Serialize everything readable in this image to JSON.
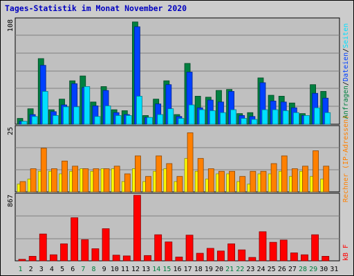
{
  "title": "Tages-Statistik im Monat November 2020",
  "colors": {
    "hits": "#008040",
    "files": "#0040ff",
    "pages": "#00e0ff",
    "visits": "#ffff00",
    "sites": "#ff8000",
    "kbytes": "#ff0000",
    "weekend": "#008040",
    "weekday": "#000000",
    "title": "#0000c0",
    "panel": "#c0c0c0"
  },
  "chart_data": [
    {
      "type": "bar",
      "panel": "top",
      "ymax_label": "108",
      "ylim": [
        0,
        108
      ],
      "categories": [
        "1",
        "2",
        "3",
        "4",
        "5",
        "6",
        "7",
        "8",
        "9",
        "10",
        "11",
        "12",
        "13",
        "14",
        "15",
        "16",
        "17",
        "18",
        "19",
        "20",
        "21",
        "22",
        "23",
        "24",
        "25",
        "26",
        "27",
        "28",
        "29",
        "30",
        "31"
      ],
      "weekend_days": [
        "1",
        "7",
        "8",
        "14",
        "15",
        "21",
        "22",
        "28",
        "29"
      ],
      "legend": {
        "placement": "right",
        "parts": [
          "Anfragen",
          "/",
          "Dateien",
          "/",
          "Seiten"
        ]
      },
      "series": [
        {
          "name": "Anfragen",
          "values": [
            6,
            16,
            68,
            15,
            26,
            45,
            50,
            23,
            39,
            15,
            14,
            106,
            9,
            26,
            45,
            10,
            63,
            29,
            28,
            35,
            36,
            11,
            12,
            48,
            30,
            29,
            22,
            11,
            41,
            34,
            0
          ]
        },
        {
          "name": "Dateien",
          "values": [
            3,
            10,
            61,
            13,
            20,
            42,
            38,
            19,
            35,
            12,
            10,
            101,
            7,
            21,
            41,
            8,
            54,
            17,
            25,
            23,
            34,
            9,
            8,
            43,
            24,
            23,
            17,
            9,
            32,
            27,
            0
          ]
        },
        {
          "name": "Seiten",
          "values": [
            3,
            8,
            34,
            9,
            18,
            18,
            39,
            8,
            19,
            9,
            9,
            29,
            7,
            10,
            16,
            6,
            20,
            15,
            14,
            12,
            15,
            6,
            5,
            15,
            15,
            14,
            12,
            9,
            17,
            12,
            0
          ]
        }
      ]
    },
    {
      "type": "bar",
      "panel": "middle",
      "ymax_label": "25",
      "ylim": [
        0,
        25
      ],
      "categories": [
        "1",
        "2",
        "3",
        "4",
        "5",
        "6",
        "7",
        "8",
        "9",
        "10",
        "11",
        "12",
        "13",
        "14",
        "15",
        "16",
        "17",
        "18",
        "19",
        "20",
        "21",
        "22",
        "23",
        "24",
        "25",
        "26",
        "27",
        "28",
        "29",
        "30",
        "31"
      ],
      "legend": {
        "placement": "right",
        "parts": [
          "Rechner (IP-Adressen)"
        ]
      },
      "series": [
        {
          "name": "Rechner (IP-Adressen)",
          "values": [
            3,
            5,
            8,
            8,
            7,
            8,
            9,
            8,
            9,
            9,
            4,
            9,
            4,
            8,
            9,
            4,
            13,
            8,
            5,
            7,
            7,
            4,
            3,
            7,
            7,
            8,
            6,
            8,
            6,
            5,
            0
          ]
        },
        {
          "name": "",
          "values": [
            4,
            9,
            17,
            9,
            12,
            10,
            9,
            9,
            9,
            10,
            7,
            14,
            6,
            14,
            11,
            6,
            23,
            13,
            9,
            8,
            8,
            6,
            8,
            8,
            11,
            14,
            9,
            10,
            16,
            10,
            0
          ]
        }
      ]
    },
    {
      "type": "bar",
      "panel": "bottom",
      "ymax_label": "867",
      "ylim": [
        0,
        867
      ],
      "categories": [
        "1",
        "2",
        "3",
        "4",
        "5",
        "6",
        "7",
        "8",
        "9",
        "10",
        "11",
        "12",
        "13",
        "14",
        "15",
        "16",
        "17",
        "18",
        "19",
        "20",
        "21",
        "22",
        "23",
        "24",
        "25",
        "26",
        "27",
        "28",
        "29",
        "30",
        "31"
      ],
      "legend": {
        "placement": "right",
        "parts": [
          "kB F"
        ]
      },
      "series": [
        {
          "name": "kB F",
          "values": [
            20,
            60,
            355,
            80,
            225,
            570,
            280,
            160,
            425,
            75,
            65,
            867,
            70,
            345,
            250,
            50,
            340,
            100,
            165,
            130,
            225,
            145,
            45,
            385,
            245,
            275,
            105,
            80,
            345,
            60,
            0
          ]
        }
      ]
    }
  ]
}
